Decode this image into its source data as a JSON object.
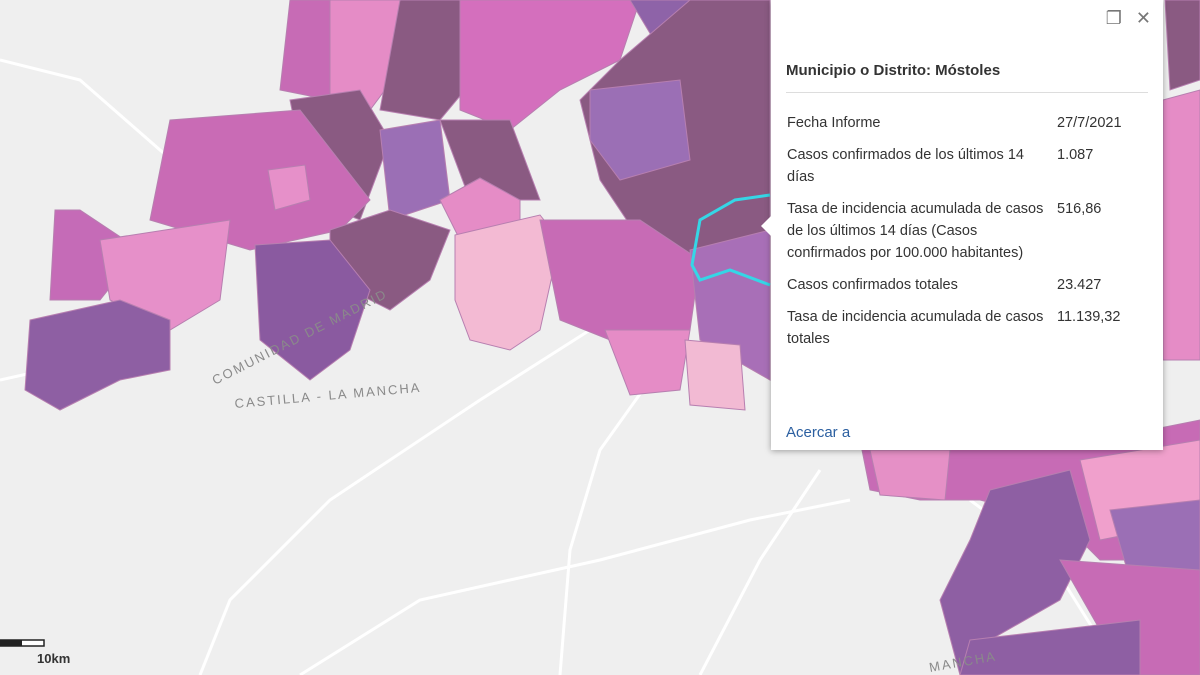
{
  "map": {
    "labels": [
      "COMUNIDAD DE MADRID",
      "CASTILLA - LA MANCHA",
      "MANCHA"
    ],
    "scale_label": "10km"
  },
  "popup": {
    "title": "Municipio o Distrito: Móstoles",
    "rows": [
      [
        "Fecha Informe",
        "27/7/2021"
      ],
      [
        "Casos confirmados de los últimos 14 días",
        "1.087"
      ],
      [
        "Tasa de incidencia acumulada de casos de los últimos 14 días (Casos confirmados por 100.000 habitantes)",
        "516,86"
      ],
      [
        "Casos confirmados totales",
        "23.427"
      ],
      [
        "Tasa de incidencia acumulada de casos totales",
        "11.139,32"
      ]
    ],
    "link": "Acercar a"
  }
}
